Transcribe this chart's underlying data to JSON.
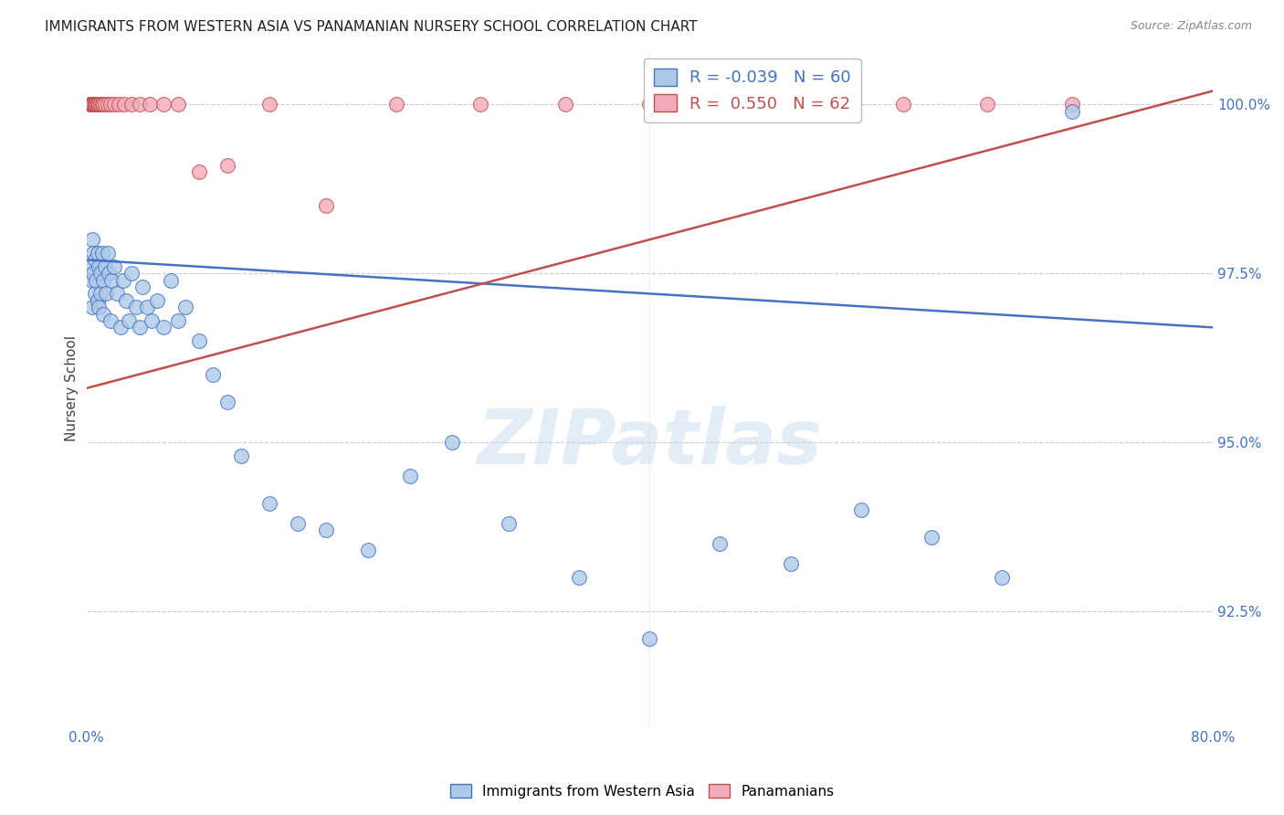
{
  "title": "IMMIGRANTS FROM WESTERN ASIA VS PANAMANIAN NURSERY SCHOOL CORRELATION CHART",
  "source": "Source: ZipAtlas.com",
  "ylabel": "Nursery School",
  "xmin": 0.0,
  "xmax": 0.8,
  "ymin": 0.908,
  "ymax": 1.008,
  "yticks": [
    0.925,
    0.95,
    0.975,
    1.0
  ],
  "ytick_labels": [
    "92.5%",
    "95.0%",
    "97.5%",
    "100.0%"
  ],
  "xticks": [
    0.0,
    0.2,
    0.4,
    0.6,
    0.8
  ],
  "xtick_labels": [
    "0.0%",
    "",
    "",
    "",
    "80.0%"
  ],
  "legend_r_blue": "-0.039",
  "legend_n_blue": "60",
  "legend_r_pink": "0.550",
  "legend_n_pink": "62",
  "blue_color": "#aec9e8",
  "pink_color": "#f2aab8",
  "blue_line_color": "#4472c4",
  "pink_line_color": "#c0504d",
  "watermark": "ZIPatlas",
  "blue_x": [
    0.003,
    0.004,
    0.004,
    0.004,
    0.005,
    0.005,
    0.006,
    0.006,
    0.007,
    0.008,
    0.008,
    0.009,
    0.009,
    0.01,
    0.01,
    0.011,
    0.012,
    0.012,
    0.013,
    0.014,
    0.015,
    0.016,
    0.017,
    0.018,
    0.02,
    0.022,
    0.024,
    0.026,
    0.028,
    0.03,
    0.032,
    0.035,
    0.038,
    0.04,
    0.043,
    0.046,
    0.05,
    0.055,
    0.06,
    0.065,
    0.07,
    0.08,
    0.09,
    0.1,
    0.11,
    0.13,
    0.15,
    0.17,
    0.2,
    0.23,
    0.26,
    0.3,
    0.35,
    0.4,
    0.45,
    0.5,
    0.55,
    0.6,
    0.65,
    0.7
  ],
  "blue_y": [
    0.976,
    0.98,
    0.974,
    0.97,
    0.978,
    0.975,
    0.972,
    0.977,
    0.974,
    0.971,
    0.978,
    0.976,
    0.97,
    0.975,
    0.972,
    0.978,
    0.974,
    0.969,
    0.976,
    0.972,
    0.978,
    0.975,
    0.968,
    0.974,
    0.976,
    0.972,
    0.967,
    0.974,
    0.971,
    0.968,
    0.975,
    0.97,
    0.967,
    0.973,
    0.97,
    0.968,
    0.971,
    0.967,
    0.974,
    0.968,
    0.97,
    0.965,
    0.96,
    0.956,
    0.948,
    0.941,
    0.938,
    0.937,
    0.934,
    0.945,
    0.95,
    0.938,
    0.93,
    0.921,
    0.935,
    0.932,
    0.94,
    0.936,
    0.93,
    0.999
  ],
  "pink_x": [
    0.003,
    0.003,
    0.003,
    0.004,
    0.004,
    0.004,
    0.004,
    0.004,
    0.004,
    0.004,
    0.005,
    0.005,
    0.005,
    0.005,
    0.005,
    0.005,
    0.005,
    0.005,
    0.005,
    0.005,
    0.006,
    0.006,
    0.006,
    0.006,
    0.006,
    0.007,
    0.007,
    0.007,
    0.007,
    0.008,
    0.008,
    0.008,
    0.009,
    0.009,
    0.01,
    0.01,
    0.011,
    0.012,
    0.013,
    0.015,
    0.017,
    0.02,
    0.023,
    0.027,
    0.032,
    0.038,
    0.045,
    0.055,
    0.065,
    0.08,
    0.1,
    0.13,
    0.17,
    0.22,
    0.28,
    0.34,
    0.4,
    0.46,
    0.52,
    0.58,
    0.64,
    0.7
  ],
  "pink_y": [
    1.0,
    1.0,
    1.0,
    1.0,
    1.0,
    1.0,
    1.0,
    1.0,
    1.0,
    1.0,
    1.0,
    1.0,
    1.0,
    1.0,
    1.0,
    1.0,
    1.0,
    1.0,
    1.0,
    1.0,
    1.0,
    1.0,
    1.0,
    1.0,
    1.0,
    1.0,
    1.0,
    1.0,
    1.0,
    1.0,
    1.0,
    1.0,
    1.0,
    1.0,
    1.0,
    1.0,
    1.0,
    1.0,
    1.0,
    1.0,
    1.0,
    1.0,
    1.0,
    1.0,
    1.0,
    1.0,
    1.0,
    1.0,
    1.0,
    0.99,
    0.991,
    1.0,
    0.985,
    1.0,
    1.0,
    1.0,
    1.0,
    1.0,
    1.0,
    1.0,
    1.0,
    1.0
  ],
  "blue_trendline_x": [
    0.0,
    0.8
  ],
  "blue_trendline_y": [
    0.977,
    0.967
  ],
  "pink_trendline_x": [
    0.0,
    0.8
  ],
  "pink_trendline_y": [
    0.958,
    1.002
  ]
}
